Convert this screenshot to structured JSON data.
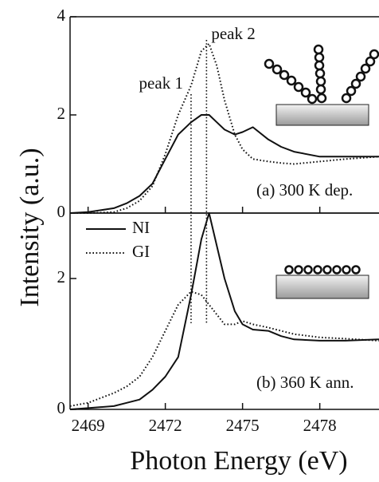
{
  "chart_data": [
    {
      "type": "line",
      "ylabel": "Intensity (a.u.)",
      "annotation": "(a) 300 K dep.",
      "xlim": [
        2468.3,
        2480.3
      ],
      "ylim": [
        0,
        4
      ],
      "yticks": [
        0,
        2,
        4
      ],
      "x": [
        2468.3,
        2469,
        2470,
        2470.5,
        2471,
        2471.5,
        2472,
        2472.5,
        2473,
        2473.4,
        2473.7,
        2474,
        2474.3,
        2474.7,
        2475,
        2475.4,
        2476,
        2476.5,
        2477,
        2478,
        2479,
        2480.3
      ],
      "series": [
        {
          "name": "NI",
          "color": "#111111",
          "dash": "solid",
          "values": [
            0,
            0.02,
            0.1,
            0.2,
            0.35,
            0.6,
            1.1,
            1.6,
            1.85,
            2.0,
            2.0,
            1.85,
            1.7,
            1.6,
            1.65,
            1.75,
            1.5,
            1.35,
            1.25,
            1.15,
            1.15,
            1.15
          ]
        },
        {
          "name": "GI",
          "color": "#111111",
          "dash": "dotted",
          "values": [
            0,
            0,
            0.02,
            0.1,
            0.25,
            0.55,
            1.2,
            2.0,
            2.6,
            3.3,
            3.45,
            3.0,
            2.3,
            1.6,
            1.3,
            1.1,
            1.05,
            1.02,
            1.0,
            1.05,
            1.1,
            1.15
          ]
        }
      ],
      "peaks": [
        {
          "x": 2473.0,
          "label": "peak 1"
        },
        {
          "x": 2473.6,
          "label": "peak 2"
        }
      ]
    },
    {
      "type": "line",
      "xlabel": "Photon Energy (eV)",
      "annotation": "(b) 360 K ann.",
      "xlim": [
        2468.3,
        2480.3
      ],
      "ylim": [
        0,
        3
      ],
      "yticks": [
        0,
        2
      ],
      "xticks": [
        2469,
        2472,
        2475,
        2478
      ],
      "legend": "upper left",
      "x": [
        2468.3,
        2469,
        2470,
        2470.5,
        2471,
        2471.5,
        2472,
        2472.5,
        2473,
        2473.4,
        2473.7,
        2474,
        2474.3,
        2474.7,
        2475,
        2475.4,
        2476,
        2476.5,
        2477,
        2478,
        2479,
        2480.3
      ],
      "series": [
        {
          "name": "NI",
          "color": "#111111",
          "dash": "solid",
          "values": [
            0,
            0.02,
            0.05,
            0.1,
            0.15,
            0.3,
            0.5,
            0.8,
            1.75,
            2.6,
            3.0,
            2.5,
            2.0,
            1.5,
            1.3,
            1.22,
            1.2,
            1.12,
            1.07,
            1.05,
            1.05,
            1.07
          ]
        },
        {
          "name": "GI",
          "color": "#111111",
          "dash": "dotted",
          "values": [
            0.05,
            0.1,
            0.25,
            0.35,
            0.5,
            0.8,
            1.2,
            1.6,
            1.8,
            1.75,
            1.6,
            1.45,
            1.3,
            1.3,
            1.35,
            1.3,
            1.25,
            1.2,
            1.15,
            1.1,
            1.08,
            1.05
          ]
        }
      ]
    }
  ]
}
